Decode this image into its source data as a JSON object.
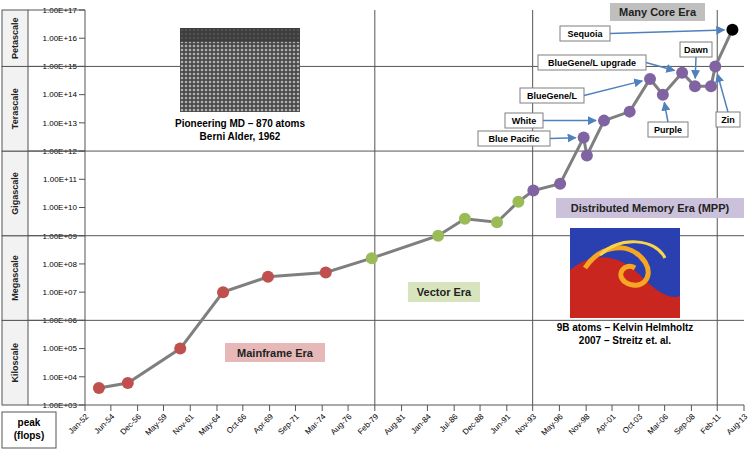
{
  "chart_data": {
    "type": "line",
    "x": [
      1953.3,
      1956.0,
      1960.9,
      1964.9,
      1969.1,
      1974.5,
      1978.8,
      1985.0,
      1987.5,
      1990.5,
      1992.5,
      1993.9,
      1996.4,
      1998.6,
      1998.9,
      2000.5,
      2002.9,
      2004.8,
      2006.0,
      2007.8,
      2009.0,
      2010.5,
      2010.9,
      2012.5
    ],
    "values": [
      4000.0,
      6000.0,
      100000.0,
      10000000.0,
      35000000.0,
      50000000.0,
      160000000.0,
      1000000000.0,
      4000000000.0,
      3000000000.0,
      16000000000.0,
      40000000000.0,
      70000000000.0,
      3000000000000.0,
      700000000000.0,
      12000000000000.0,
      25000000000000.0,
      360000000000000.0,
      100000000000000.0,
      600000000000000.0,
      200000000000000.0,
      200000000000000.0,
      1000000000000000.0,
      2e+16
    ],
    "color": "#7f7f7f",
    "colors": [
      "#c0504d",
      "#c0504d",
      "#c0504d",
      "#c0504d",
      "#c0504d",
      "#c0504d",
      "#9bbb59",
      "#9bbb59",
      "#9bbb59",
      "#9bbb59",
      "#9bbb59",
      "#8064a2",
      "#8064a2",
      "#8064a2",
      "#8064a2",
      "#8064a2",
      "#8064a2",
      "#8064a2",
      "#8064a2",
      "#8064a2",
      "#8064a2",
      "#8064a2",
      "#8064a2",
      "#000000"
    ],
    "marker": "circle",
    "log": "y",
    "grid": false,
    "xlim": [
      1952,
      2013.583
    ],
    "xticks": [
      {
        "value": 1952,
        "label": "Jan-52"
      },
      {
        "value": 1954.417,
        "label": "Jun-54"
      },
      {
        "value": 1956.917,
        "label": "Dec-56"
      },
      {
        "value": 1959.333,
        "label": "May-59"
      },
      {
        "value": 1961.833,
        "label": "Nov-61"
      },
      {
        "value": 1964.333,
        "label": "May-64"
      },
      {
        "value": 1966.75,
        "label": "Oct-66"
      },
      {
        "value": 1969.25,
        "label": "Apr-69"
      },
      {
        "value": 1971.667,
        "label": "Sep-71"
      },
      {
        "value": 1974.167,
        "label": "Mar-74"
      },
      {
        "value": 1976.583,
        "label": "Aug-76"
      },
      {
        "value": 1979.083,
        "label": "Feb-79"
      },
      {
        "value": 1981.583,
        "label": "Aug-81"
      },
      {
        "value": 1984,
        "label": "Jan-84"
      },
      {
        "value": 1986.5,
        "label": "Jul-86"
      },
      {
        "value": 1988.917,
        "label": "Dec-88"
      },
      {
        "value": 1991.417,
        "label": "Jun-91"
      },
      {
        "value": 1993.833,
        "label": "Nov-93"
      },
      {
        "value": 1996.333,
        "label": "May-96"
      },
      {
        "value": 1998.833,
        "label": "Nov-98"
      },
      {
        "value": 2001.25,
        "label": "Apr-01"
      },
      {
        "value": 2003.75,
        "label": "Oct-03"
      },
      {
        "value": 2006.167,
        "label": "Mar-06"
      },
      {
        "value": 2008.667,
        "label": "Sep-08"
      },
      {
        "value": 2011.083,
        "label": "Feb-11"
      },
      {
        "value": 2013.583,
        "label": "Aug-13"
      }
    ],
    "ylim": [
      1000.0,
      1e+17
    ],
    "yticks": [
      {
        "value": 1000.0,
        "label": "1.00E+03"
      },
      {
        "value": 10000.0,
        "label": "1.00E+04"
      },
      {
        "value": 100000.0,
        "label": "1.00E+05"
      },
      {
        "value": 1000000.0,
        "label": "1.00E+06"
      },
      {
        "value": 10000000.0,
        "label": "1.00E+07"
      },
      {
        "value": 100000000.0,
        "label": "1.00E+08"
      },
      {
        "value": 1000000000.0,
        "label": "1.00E+09"
      },
      {
        "value": 10000000000.0,
        "label": "1.00E+10"
      },
      {
        "value": 100000000000.0,
        "label": "1.00E+11"
      },
      {
        "value": 1000000000000.0,
        "label": "1.00E+12"
      },
      {
        "value": 10000000000000.0,
        "label": "1.00E+13"
      },
      {
        "value": 100000000000000.0,
        "label": "1.00E+14"
      },
      {
        "value": 1000000000000000.0,
        "label": "1.00E+15"
      },
      {
        "value": 1e+16,
        "label": "1.00E+16"
      },
      {
        "value": 1e+17,
        "label": "1.00E+17"
      }
    ],
    "y_label": "peak (flops)",
    "scale_bands": [
      {
        "label": "Kiloscale",
        "from": 1000.0,
        "to": 1000000.0
      },
      {
        "label": "Megascale",
        "from": 1000000.0,
        "to": 1000000000.0
      },
      {
        "label": "Gigascale",
        "from": 1000000000.0,
        "to": 1000000000000.0
      },
      {
        "label": "Terascale",
        "from": 1000000000000.0,
        "to": 1000000000000000.0
      },
      {
        "label": "Petascale",
        "from": 1000000000000000.0,
        "to": 1e+17
      }
    ],
    "eras": [
      {
        "label": "Mainframe Era",
        "start": 1952,
        "color": "#e6b9b8"
      },
      {
        "label": "Vector Era",
        "start": 1979.083,
        "color": "#d7e4bd"
      },
      {
        "label": "Distributed Memory Era (MPP)",
        "start": 1993.833,
        "color": "#ccc1da"
      },
      {
        "label": "Many Core Era",
        "start": 2011.083,
        "color": "#bfbfbf"
      }
    ],
    "annotations": [
      "Sequoia",
      "Dawn",
      "BlueGene/L upgrade",
      "BlueGene/L",
      "White",
      "Blue Pacific",
      "Purple",
      "Zin"
    ],
    "image_captions": [
      [
        "Pioneering MD – 870 atoms",
        "Berni Alder, 1962"
      ],
      [
        "9B atoms – Kelvin Helmholtz",
        "2007 – Streitz et. al."
      ]
    ]
  }
}
